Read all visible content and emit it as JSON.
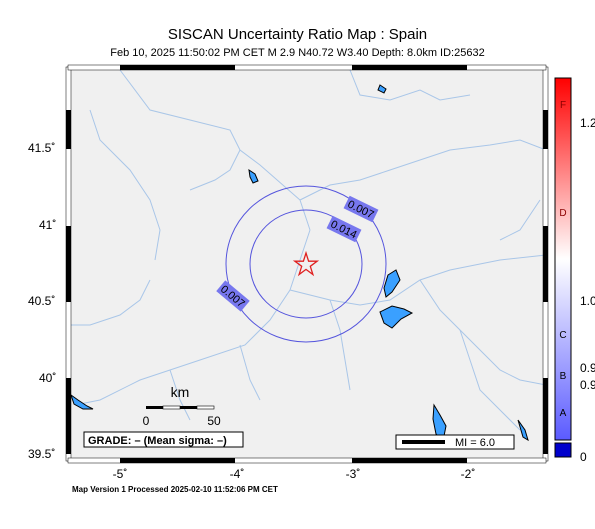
{
  "title": "SISCAN Uncertainty Ratio Map : Spain",
  "subtitle": "Feb 10, 2025 11:50:02 PM CET   M 2.9   N40.72 W3.40   Depth: 8.0km   ID:25632",
  "footer": "Map Version 1 Processed 2025-02-10 11:52:06 PM CET",
  "y_ticks": [
    "41.5˚",
    "41˚",
    "40.5˚",
    "40˚",
    "39.5˚"
  ],
  "x_ticks": [
    "-5˚",
    "-4˚",
    "-3˚",
    "-2˚"
  ],
  "contours": [
    {
      "label": "0.007",
      "value": 0.007
    },
    {
      "label": "0.014",
      "value": 0.014
    },
    {
      "label": "0.007",
      "value": 0.007
    }
  ],
  "scale_bar": {
    "title": "km",
    "labels": [
      "0",
      "50"
    ]
  },
  "grade": "GRADE: – (Mean sigma: –)",
  "mmi": "MI = 6.0",
  "colorbar": {
    "letters": [
      "F",
      "D",
      "C",
      "B",
      "A"
    ],
    "values": [
      "1.2",
      "1.0",
      "0.9",
      "0.9",
      "0"
    ],
    "colors": {
      "low": "#5b5bff",
      "mid": "#ffffff",
      "high": "#ff0000",
      "bottom": "#0000cc"
    }
  },
  "epicenter": {
    "lat": 40.72,
    "lon": -3.4,
    "symbol": "star-icon",
    "color": "#e02020"
  },
  "colors": {
    "land": "#f0f0f0",
    "rivers": "#a9c6e8",
    "lakes": "#3aa0ff",
    "contour": "#5555dd",
    "label_bg": "#7777ee"
  }
}
